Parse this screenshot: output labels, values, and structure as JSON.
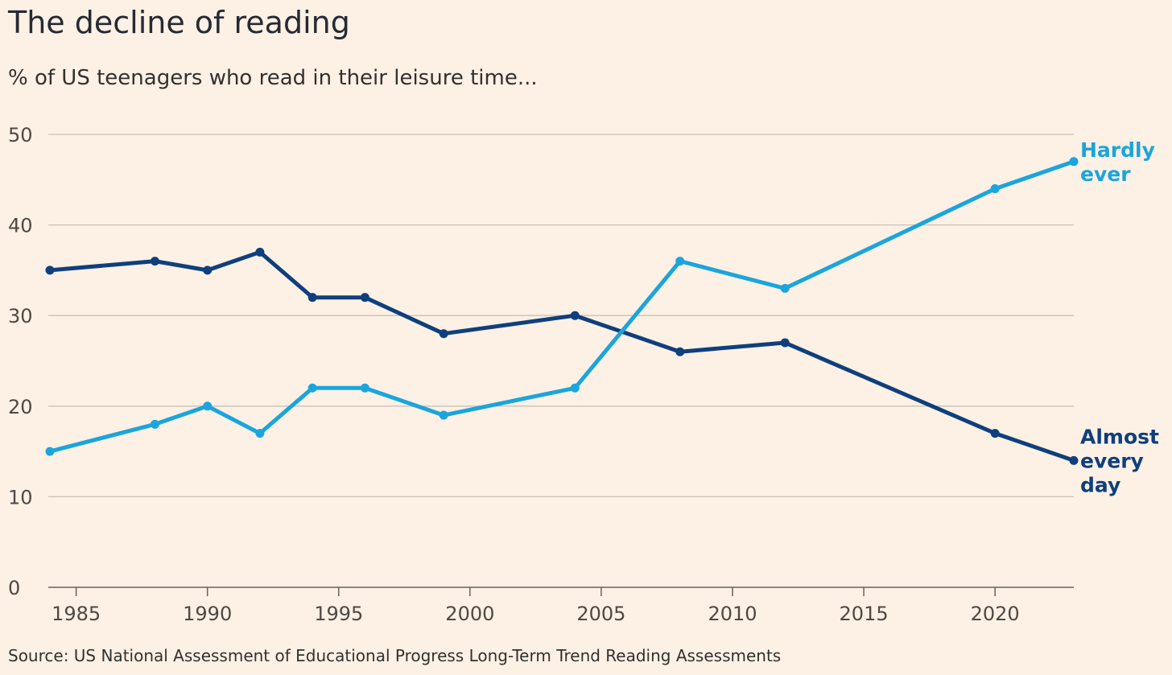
{
  "title": "The decline of reading",
  "subtitle": "% of US teenagers who read in their leisure time...",
  "source": "Source: US National Assessment of Educational Progress Long-Term Trend Reading Assessments",
  "colors": {
    "background": "#fdf1e5",
    "almost_every_day": "#0f3f7d",
    "hardly_ever": "#1aa5de",
    "grid": "#ccc1b7"
  },
  "chart_data": {
    "type": "line",
    "title": "The decline of reading",
    "subtitle": "% of US teenagers who read in their leisure time...",
    "xlabel": "",
    "ylabel": "",
    "xlim": [
      1984,
      2023
    ],
    "ylim": [
      0,
      50
    ],
    "x_ticks": [
      1985,
      1990,
      1995,
      2000,
      2005,
      2010,
      2015,
      2020
    ],
    "y_ticks": [
      0,
      10,
      20,
      30,
      40,
      50
    ],
    "grid": "horizontal",
    "legend": "direct labels at line ends (right)",
    "series": [
      {
        "name": "Almost every day",
        "label_lines": [
          "Almost",
          "every",
          "day"
        ],
        "color": "#0f3f7d",
        "x": [
          1984,
          1988,
          1990,
          1992,
          1994,
          1996,
          1999,
          2004,
          2008,
          2012,
          2020,
          2023
        ],
        "values": [
          35,
          36,
          35,
          37,
          32,
          32,
          28,
          30,
          26,
          27,
          17,
          14
        ]
      },
      {
        "name": "Hardly ever",
        "label_lines": [
          "Hardly",
          "ever"
        ],
        "color": "#1aa5de",
        "x": [
          1984,
          1988,
          1990,
          1992,
          1994,
          1996,
          1999,
          2004,
          2008,
          2012,
          2020,
          2023
        ],
        "values": [
          15,
          18,
          20,
          17,
          22,
          22,
          19,
          22,
          36,
          33,
          44,
          47
        ]
      }
    ]
  }
}
